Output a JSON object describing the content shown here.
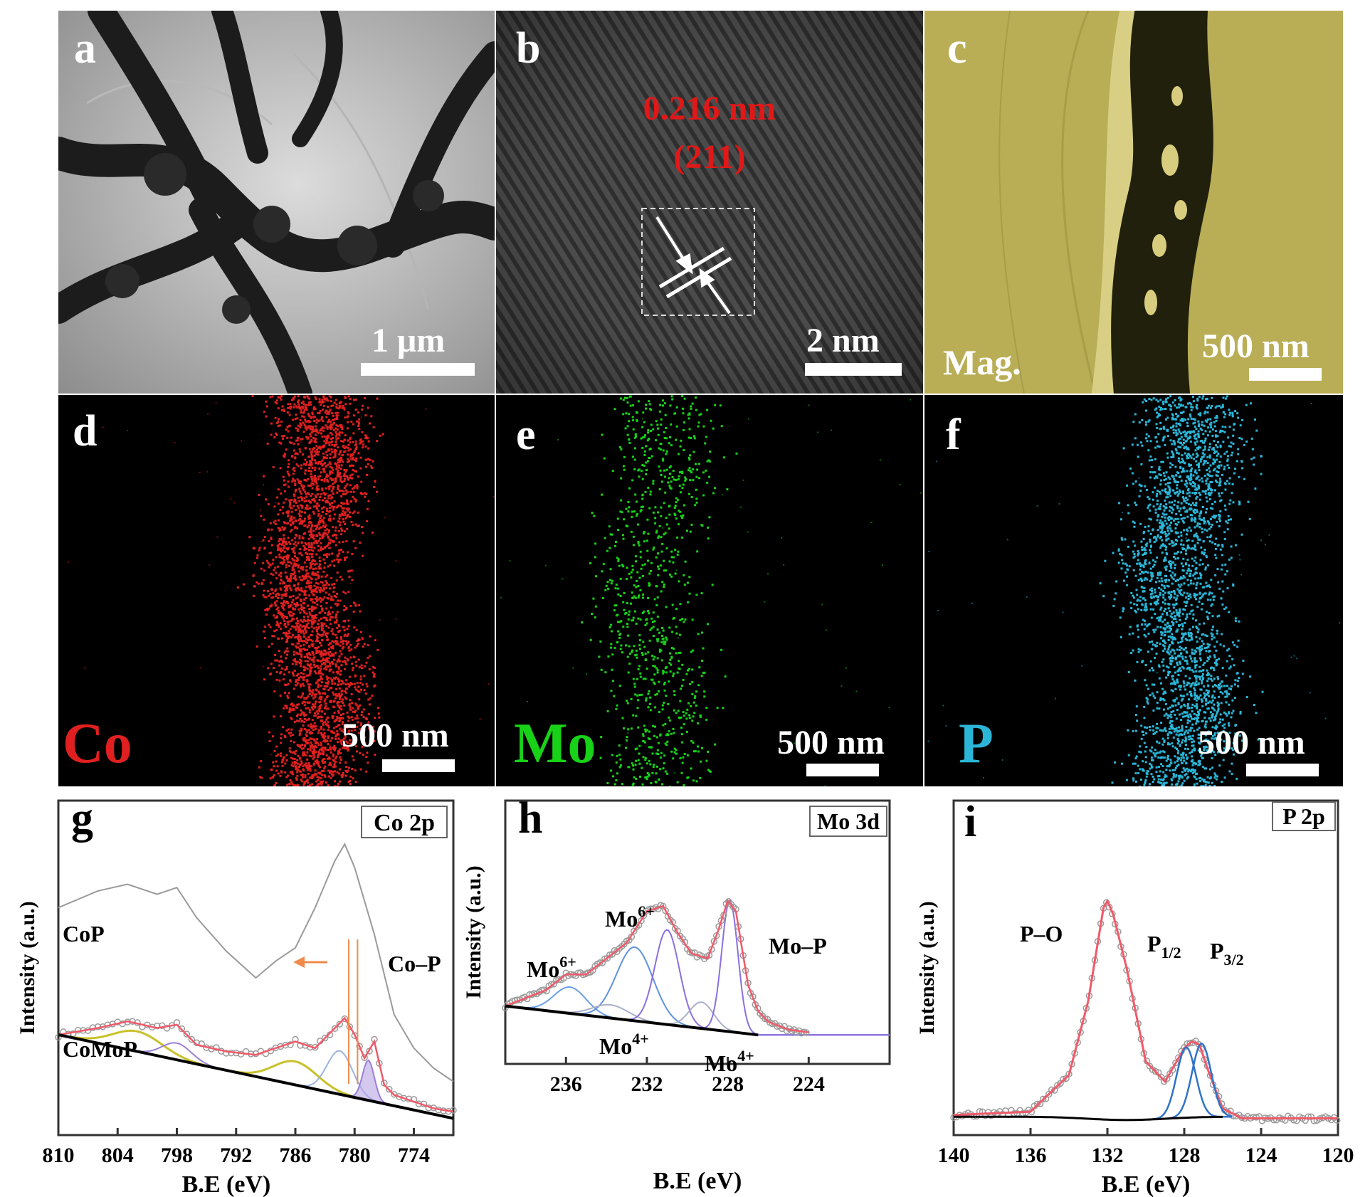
{
  "panels": {
    "a": {
      "label": "a",
      "scale": "1 μm"
    },
    "b": {
      "label": "b",
      "spacing": "0.216 nm",
      "plane": "(211)",
      "scale": "2 nm"
    },
    "c": {
      "label": "c",
      "mode": "Mag.",
      "scale": "500 nm"
    },
    "d": {
      "label": "d",
      "element": "Co",
      "scale": "500 nm",
      "color": "#e02020"
    },
    "e": {
      "label": "e",
      "element": "Mo",
      "scale": "500 nm",
      "color": "#18d218"
    },
    "f": {
      "label": "f",
      "element": "P",
      "scale": "500 nm",
      "color": "#2bb6d8"
    }
  },
  "colors": {
    "fit_envelope": "#f05a6a",
    "raw_points": "#9a9a9a",
    "background": "#000000"
  },
  "chart_data": [
    {
      "panel": "g",
      "type": "line",
      "title": "Co 2p",
      "xlabel": "B.E (eV)",
      "ylabel": "Intensity (a.u.)",
      "xlim": [
        810,
        770
      ],
      "x_ticks": [
        810,
        804,
        798,
        792,
        786,
        780,
        774
      ],
      "annotations": [
        "CoP",
        "CoMoP",
        "Co–P"
      ],
      "series": [
        {
          "name": "CoP",
          "x": [
            810,
            806,
            803,
            800,
            798,
            796,
            793,
            790,
            788,
            786,
            784,
            782,
            781,
            780,
            778,
            776,
            774,
            772,
            770
          ],
          "y": [
            0.68,
            0.73,
            0.75,
            0.72,
            0.74,
            0.65,
            0.55,
            0.47,
            0.52,
            0.56,
            0.68,
            0.82,
            0.87,
            0.8,
            0.6,
            0.36,
            0.26,
            0.2,
            0.16
          ]
        },
        {
          "name": "CoMoP",
          "x": [
            810,
            806,
            803,
            800,
            798,
            796,
            793,
            790,
            788,
            786,
            784,
            782,
            781,
            780,
            779,
            778,
            777,
            776,
            774,
            772,
            770
          ],
          "y": [
            0.3,
            0.32,
            0.34,
            0.32,
            0.33,
            0.27,
            0.25,
            0.24,
            0.26,
            0.28,
            0.26,
            0.32,
            0.35,
            0.3,
            0.23,
            0.28,
            0.15,
            0.12,
            0.1,
            0.08,
            0.07
          ]
        },
        {
          "name": "background",
          "x": [
            810,
            770
          ],
          "y": [
            0.3,
            0.05
          ]
        }
      ]
    },
    {
      "panel": "h",
      "type": "line",
      "title": "Mo 3d",
      "xlabel": "B.E (eV)",
      "ylabel": "Intensity (a.u.)",
      "xlim": [
        239,
        220
      ],
      "x_ticks": [
        236,
        232,
        228,
        224
      ],
      "annotations": [
        "Mo⁶⁺",
        "Mo⁶⁺",
        "Mo⁴⁺",
        "Mo⁴⁺",
        "Mo–P"
      ],
      "series": [
        {
          "name": "envelope",
          "x": [
            239,
            237,
            236,
            235,
            234,
            233,
            232,
            231.2,
            230.5,
            229.8,
            229,
            228.5,
            228,
            227.6,
            227,
            226.5,
            226,
            225,
            224
          ],
          "y": [
            0.22,
            0.28,
            0.34,
            0.34,
            0.4,
            0.46,
            0.58,
            0.6,
            0.5,
            0.42,
            0.4,
            0.5,
            0.62,
            0.58,
            0.3,
            0.2,
            0.16,
            0.13,
            0.12
          ]
        },
        {
          "name": "background",
          "x": [
            239,
            226.5
          ],
          "y": [
            0.22,
            0.11
          ]
        }
      ]
    },
    {
      "panel": "i",
      "type": "line",
      "title": "P 2p",
      "xlabel": "B.E (eV)",
      "ylabel": "Intensity (a.u.)",
      "xlim": [
        140,
        120
      ],
      "x_ticks": [
        140,
        136,
        132,
        128,
        124,
        120
      ],
      "annotations": [
        "P–O",
        "P1/2",
        "P3/2"
      ],
      "series": [
        {
          "name": "envelope",
          "x": [
            140,
            136,
            134,
            133,
            132.2,
            132,
            131.7,
            131,
            130,
            129,
            128.5,
            128,
            127.6,
            127.2,
            126.8,
            126,
            125,
            124,
            122,
            120
          ],
          "y": [
            0.06,
            0.07,
            0.18,
            0.4,
            0.68,
            0.7,
            0.66,
            0.5,
            0.22,
            0.16,
            0.21,
            0.26,
            0.28,
            0.27,
            0.2,
            0.08,
            0.05,
            0.05,
            0.05,
            0.05
          ]
        }
      ]
    }
  ],
  "xps": {
    "g": {
      "label": "g",
      "title": "Co 2p",
      "xlabel": "B.E (eV)",
      "ylabel": "Intensity (a.u.)",
      "ticks": [
        "810",
        "804",
        "798",
        "792",
        "786",
        "780",
        "774"
      ],
      "ann1": "CoP",
      "ann2": "CoMoP",
      "ann3": "Co–P"
    },
    "h": {
      "label": "h",
      "title": "Mo 3d",
      "xlabel": "B.E (eV)",
      "ylabel": "Intensity (a.u.)",
      "ticks": [
        "236",
        "232",
        "228",
        "224"
      ],
      "ann_mo": "Mo",
      "sup6": "6+",
      "sup4": "4+",
      "ann_mop": "Mo–P"
    },
    "i": {
      "label": "i",
      "title": "P 2p",
      "xlabel": "B.E (eV)",
      "ylabel": "Intensity (a.u.)",
      "ticks": [
        "140",
        "136",
        "132",
        "128",
        "124",
        "120"
      ],
      "ann_po": "P–O",
      "ann_p": "P",
      "sub12": "1/2",
      "sub32": "3/2"
    }
  }
}
